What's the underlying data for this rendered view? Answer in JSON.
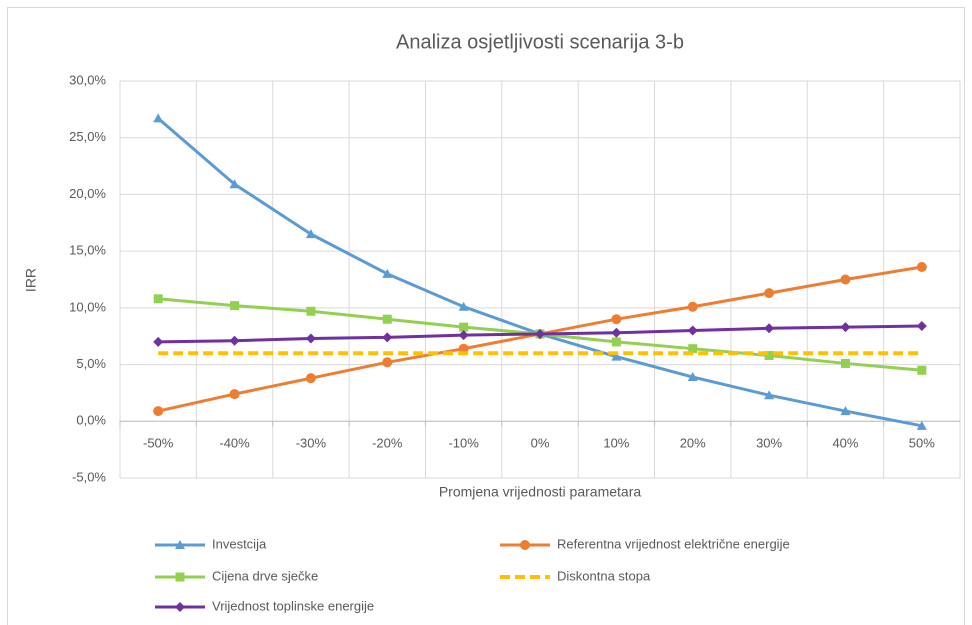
{
  "chart_data": {
    "type": "line",
    "title": "Analiza osjetljivosti scenarija 3-b",
    "x_label": "Promjena vrijednosti parametara",
    "y_label": "IRR",
    "categories": [
      "-50%",
      "-40%",
      "-30%",
      "-20%",
      "-10%",
      "0%",
      "10%",
      "20%",
      "30%",
      "40%",
      "50%"
    ],
    "series": [
      {
        "name": "Investcija",
        "color": "#5b9bd5",
        "marker": "triangle",
        "values": [
          26.7,
          20.9,
          16.5,
          13.0,
          10.1,
          7.7,
          5.7,
          3.9,
          2.3,
          0.9,
          -0.4
        ]
      },
      {
        "name": "Referentna vrijednost električne energije",
        "color": "#ed7d31",
        "marker": "circle",
        "values": [
          0.9,
          2.4,
          3.8,
          5.2,
          6.4,
          7.7,
          9.0,
          10.1,
          11.3,
          12.5,
          13.6
        ]
      },
      {
        "name": "Cijena drve sječke",
        "color": "#92d050",
        "marker": "square",
        "values": [
          10.8,
          10.2,
          9.7,
          9.0,
          8.3,
          7.7,
          7.0,
          6.4,
          5.8,
          5.1,
          4.5
        ]
      },
      {
        "name": "Diskontna stopa",
        "color": "#ffc000",
        "marker": "none",
        "dashed": true,
        "values": [
          6.0,
          6.0,
          6.0,
          6.0,
          6.0,
          6.0,
          6.0,
          6.0,
          6.0,
          6.0,
          6.0
        ]
      },
      {
        "name": "Vrijednost toplinske energije",
        "color": "#7030a0",
        "marker": "diamond",
        "values": [
          7.0,
          7.1,
          7.3,
          7.4,
          7.6,
          7.7,
          7.8,
          8.0,
          8.2,
          8.3,
          8.4
        ]
      }
    ],
    "ylim": [
      -5,
      30
    ],
    "yticks": [
      {
        "value": -5,
        "label": "-5,0%"
      },
      {
        "value": 0,
        "label": "0,0%"
      },
      {
        "value": 5,
        "label": "5,0%"
      },
      {
        "value": 10,
        "label": "10,0%"
      },
      {
        "value": 15,
        "label": "15,0%"
      },
      {
        "value": 20,
        "label": "20,0%"
      },
      {
        "value": 25,
        "label": "25,0%"
      },
      {
        "value": 30,
        "label": "30,0%"
      }
    ],
    "grid": true,
    "legend": "bottom"
  }
}
